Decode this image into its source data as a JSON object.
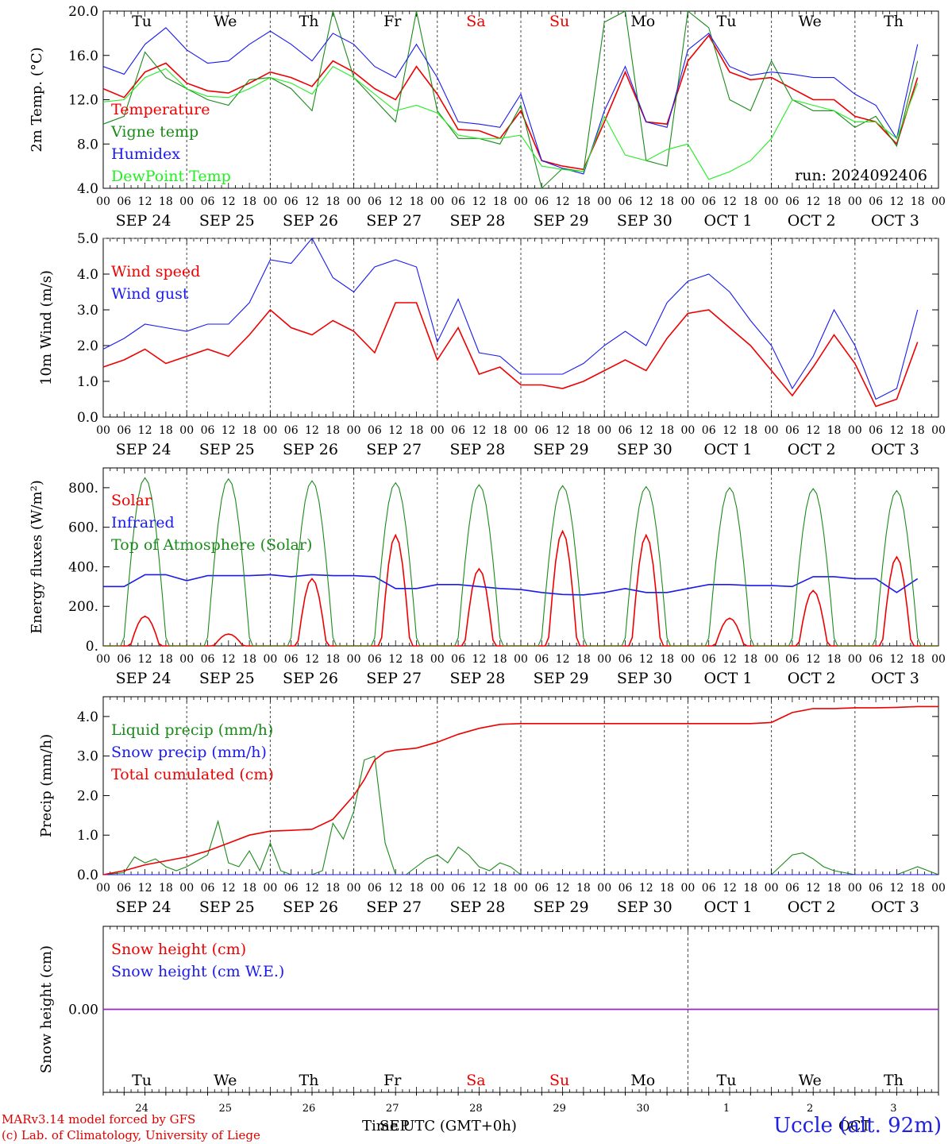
{
  "run_label": "run: 2024092406",
  "footer": {
    "model": "MARv3.14 model forced by GFS",
    "lab": "(c) Lab. of Climatology, University of Liege",
    "xlabel": "Time UTC (GMT+0h)",
    "station": "Uccle (alt. 92m)",
    "month_a": "SEP",
    "month_b": "OCT"
  },
  "colors": {
    "red": "#ee0000",
    "green": "#1a8a1a",
    "blue": "#1a1aee",
    "lightgreen": "#22ee22",
    "purple": "#8a2be2"
  },
  "weekdays": [
    "Tu",
    "We",
    "Th",
    "Fr",
    "Sa",
    "Su",
    "Mo",
    "Tu",
    "We",
    "Th"
  ],
  "weekday_colors": [
    "#000",
    "#000",
    "#000",
    "#000",
    "#ee0000",
    "#ee0000",
    "#000",
    "#000",
    "#000",
    "#000"
  ],
  "day_labels": [
    "SEP 24",
    "SEP 25",
    "SEP 26",
    "SEP 27",
    "SEP 28",
    "SEP 29",
    "SEP 30",
    "OCT 1",
    "OCT 2",
    "OCT 3"
  ],
  "day_numbers": [
    "24",
    "25",
    "26",
    "27",
    "28",
    "29",
    "30",
    "1",
    "2",
    "3"
  ],
  "hour_labels": [
    "00",
    "06",
    "12",
    "18"
  ],
  "chart_data": [
    {
      "type": "line",
      "id": "temp",
      "ylabel": "2m Temp. (°C)",
      "ylim": [
        4.0,
        20.0
      ],
      "yticks": [
        "4.0",
        "8.0",
        "12.0",
        "16.0",
        "20.0"
      ],
      "x_unit": "hours since SEP 24 00 UTC",
      "series": [
        {
          "name": "Temperature",
          "color": "red",
          "x": [
            0,
            6,
            12,
            18,
            24,
            30,
            36,
            42,
            48,
            54,
            60,
            66,
            72,
            78,
            84,
            90,
            96,
            102,
            108,
            114,
            120,
            126,
            132,
            138,
            144,
            150,
            156,
            162,
            168,
            174,
            180,
            186,
            192,
            198,
            204,
            210,
            216,
            222,
            228,
            234
          ],
          "y": [
            13.0,
            12.2,
            14.5,
            15.3,
            13.5,
            12.8,
            12.6,
            13.5,
            14.5,
            14.0,
            13.2,
            15.5,
            14.5,
            13.0,
            12.0,
            15.0,
            12.5,
            9.3,
            9.2,
            8.5,
            11.0,
            6.5,
            6.0,
            5.7,
            10.0,
            14.5,
            10.0,
            9.8,
            15.5,
            17.8,
            14.5,
            13.8,
            14.0,
            13.0,
            12.0,
            12.0,
            10.5,
            10.0,
            8.0,
            14.0
          ]
        },
        {
          "name": "Vigne temp",
          "color": "green",
          "x": [
            0,
            6,
            12,
            18,
            24,
            30,
            36,
            42,
            48,
            54,
            60,
            66,
            72,
            78,
            84,
            90,
            96,
            102,
            108,
            114,
            120,
            126,
            132,
            138,
            144,
            150,
            156,
            162,
            168,
            174,
            180,
            186,
            192,
            198,
            204,
            210,
            216,
            222,
            228,
            234
          ],
          "y": [
            9.8,
            10.5,
            16.3,
            14.0,
            13.0,
            12.0,
            11.5,
            13.8,
            14.0,
            13.0,
            11.0,
            20.0,
            14.0,
            12.0,
            10.0,
            20.0,
            11.0,
            8.5,
            8.5,
            8.0,
            11.5,
            4.0,
            5.8,
            5.5,
            19.0,
            20.0,
            6.5,
            6.0,
            20.0,
            18.5,
            12.0,
            11.0,
            15.5,
            12.0,
            11.0,
            11.0,
            9.5,
            10.5,
            7.8,
            15.5
          ]
        },
        {
          "name": "Humidex",
          "color": "blue",
          "x": [
            0,
            6,
            12,
            18,
            24,
            30,
            36,
            42,
            48,
            54,
            60,
            66,
            72,
            78,
            84,
            90,
            96,
            102,
            108,
            114,
            120,
            126,
            132,
            138,
            144,
            150,
            156,
            162,
            168,
            174,
            180,
            186,
            192,
            198,
            204,
            210,
            216,
            222,
            228,
            234
          ],
          "y": [
            15.0,
            14.3,
            17.0,
            18.5,
            16.5,
            15.3,
            15.5,
            17.0,
            18.2,
            17.0,
            15.5,
            18.0,
            17.0,
            15.0,
            14.0,
            17.0,
            14.0,
            10.0,
            9.8,
            9.5,
            12.5,
            6.5,
            5.8,
            5.3,
            11.0,
            15.0,
            10.0,
            9.5,
            16.5,
            18.0,
            15.0,
            14.2,
            14.5,
            14.3,
            14.0,
            14.0,
            12.5,
            11.5,
            8.5,
            17.0
          ]
        },
        {
          "name": "DewPoint Temp",
          "color": "lightgreen",
          "x": [
            0,
            6,
            12,
            18,
            24,
            30,
            36,
            42,
            48,
            54,
            60,
            66,
            72,
            78,
            84,
            90,
            96,
            102,
            108,
            114,
            120,
            126,
            132,
            138,
            144,
            150,
            156,
            162,
            168,
            174,
            180,
            186,
            192,
            198,
            204,
            210,
            216,
            222,
            228,
            234
          ],
          "y": [
            11.8,
            12.0,
            14.0,
            14.8,
            13.0,
            12.3,
            12.2,
            13.0,
            14.0,
            13.5,
            12.5,
            15.0,
            14.0,
            12.5,
            11.0,
            11.5,
            10.8,
            8.8,
            8.5,
            8.5,
            8.8,
            6.0,
            5.7,
            5.5,
            10.5,
            7.0,
            6.5,
            7.5,
            8.0,
            4.8,
            5.5,
            6.5,
            8.5,
            12.0,
            11.5,
            11.0,
            10.0,
            10.0,
            8.5,
            13.5
          ]
        }
      ]
    },
    {
      "type": "line",
      "id": "wind",
      "ylabel": "10m Wind (m/s)",
      "ylim": [
        0.0,
        5.0
      ],
      "yticks": [
        "0.0",
        "1.0",
        "2.0",
        "3.0",
        "4.0",
        "5.0"
      ],
      "x_unit": "hours since SEP 24 00 UTC",
      "series": [
        {
          "name": "Wind speed",
          "color": "red",
          "x": [
            0,
            6,
            12,
            18,
            24,
            30,
            36,
            42,
            48,
            54,
            60,
            66,
            72,
            78,
            84,
            90,
            96,
            102,
            108,
            114,
            120,
            126,
            132,
            138,
            144,
            150,
            156,
            162,
            168,
            174,
            180,
            186,
            192,
            198,
            204,
            210,
            216,
            222,
            228,
            234
          ],
          "y": [
            1.4,
            1.6,
            1.9,
            1.5,
            1.7,
            1.9,
            1.7,
            2.3,
            3.0,
            2.5,
            2.3,
            2.7,
            2.4,
            1.8,
            3.2,
            3.2,
            1.6,
            2.5,
            1.2,
            1.4,
            0.9,
            0.9,
            0.8,
            1.0,
            1.3,
            1.6,
            1.3,
            2.2,
            2.9,
            3.0,
            2.5,
            2.0,
            1.3,
            0.6,
            1.4,
            2.3,
            1.5,
            0.3,
            0.5,
            2.1
          ]
        },
        {
          "name": "Wind gust",
          "color": "blue",
          "x": [
            0,
            6,
            12,
            18,
            24,
            30,
            36,
            42,
            48,
            54,
            60,
            66,
            72,
            78,
            84,
            90,
            96,
            102,
            108,
            114,
            120,
            126,
            132,
            138,
            144,
            150,
            156,
            162,
            168,
            174,
            180,
            186,
            192,
            198,
            204,
            210,
            216,
            222,
            228,
            234
          ],
          "y": [
            1.9,
            2.2,
            2.6,
            2.5,
            2.4,
            2.6,
            2.6,
            3.2,
            4.4,
            4.3,
            5.0,
            3.9,
            3.5,
            4.2,
            4.4,
            4.2,
            2.1,
            3.3,
            1.8,
            1.7,
            1.2,
            1.2,
            1.2,
            1.5,
            2.0,
            2.4,
            2.0,
            3.2,
            3.8,
            4.0,
            3.5,
            2.7,
            2.0,
            0.8,
            1.7,
            3.0,
            2.0,
            0.5,
            0.8,
            3.0
          ]
        }
      ]
    },
    {
      "type": "line",
      "id": "energy",
      "ylabel": "Energy fluxes (W/m²)",
      "ylim": [
        0,
        900
      ],
      "yticks": [
        "0.",
        "200.",
        "400.",
        "600.",
        "800."
      ],
      "x_unit": "hours since SEP 24 00 UTC",
      "series": [
        {
          "name": "Solar",
          "color": "red",
          "diurnal_peaks": [
            150,
            60,
            340,
            560,
            390,
            580,
            560,
            140,
            280,
            450
          ]
        },
        {
          "name": "Infrared",
          "color": "blue",
          "x": [
            0,
            6,
            12,
            18,
            24,
            30,
            36,
            42,
            48,
            54,
            60,
            66,
            72,
            78,
            84,
            90,
            96,
            102,
            108,
            114,
            120,
            126,
            132,
            138,
            144,
            150,
            156,
            162,
            168,
            174,
            180,
            186,
            192,
            198,
            204,
            210,
            216,
            222,
            228,
            234
          ],
          "y": [
            300,
            300,
            360,
            360,
            330,
            355,
            355,
            355,
            360,
            350,
            360,
            355,
            355,
            350,
            290,
            290,
            310,
            310,
            300,
            290,
            285,
            270,
            260,
            258,
            270,
            290,
            270,
            270,
            290,
            310,
            310,
            305,
            305,
            300,
            350,
            350,
            340,
            340,
            270,
            340
          ]
        },
        {
          "name": "Top of Atmosphere (Solar)",
          "color": "green",
          "diurnal_peaks": [
            850,
            845,
            835,
            825,
            815,
            810,
            805,
            800,
            795,
            785
          ]
        }
      ]
    },
    {
      "type": "line",
      "id": "precip",
      "ylabel": "Precip (mm/h)",
      "ylim": [
        0.0,
        4.5
      ],
      "yticks": [
        "0.0",
        "1.0",
        "2.0",
        "3.0",
        "4.0"
      ],
      "x_unit": "hours since SEP 24 00 UTC",
      "series": [
        {
          "name": "Liquid precip (mm/h)",
          "color": "green",
          "x": [
            0,
            6,
            9,
            12,
            15,
            18,
            21,
            24,
            30,
            33,
            36,
            39,
            42,
            45,
            48,
            51,
            54,
            57,
            60,
            63,
            66,
            69,
            72,
            75,
            78,
            81,
            84,
            87,
            90,
            93,
            96,
            99,
            102,
            105,
            108,
            111,
            114,
            117,
            120,
            126,
            132,
            180,
            192,
            198,
            201,
            204,
            207,
            210,
            213,
            216,
            228,
            234,
            240
          ],
          "y": [
            0,
            0.05,
            0.45,
            0.3,
            0.4,
            0.2,
            0.1,
            0.2,
            0.5,
            1.35,
            0.3,
            0.2,
            0.6,
            0.1,
            0.8,
            0.1,
            0,
            0,
            0,
            0.1,
            1.3,
            0.9,
            1.6,
            2.9,
            3.0,
            0.8,
            0,
            0,
            0.2,
            0.4,
            0.5,
            0.3,
            0.7,
            0.5,
            0.2,
            0.1,
            0.3,
            0.2,
            0,
            0,
            0,
            0,
            0,
            0.5,
            0.55,
            0.4,
            0.2,
            0.1,
            0.05,
            0,
            0,
            0.2,
            0
          ]
        },
        {
          "name": "Snow precip (mm/h)",
          "color": "blue",
          "x": [
            0,
            240
          ],
          "y": [
            0,
            0
          ]
        },
        {
          "name": "Total cumulated (cm)",
          "color": "red",
          "x": [
            0,
            6,
            12,
            18,
            24,
            30,
            36,
            42,
            48,
            54,
            60,
            66,
            72,
            75,
            78,
            81,
            84,
            90,
            96,
            102,
            108,
            114,
            120,
            126,
            132,
            186,
            192,
            198,
            204,
            210,
            216,
            222,
            228,
            234,
            240
          ],
          "y": [
            0,
            0.1,
            0.25,
            0.35,
            0.45,
            0.6,
            0.8,
            1.0,
            1.1,
            1.12,
            1.15,
            1.4,
            2.0,
            2.4,
            2.9,
            3.1,
            3.15,
            3.2,
            3.35,
            3.55,
            3.7,
            3.8,
            3.82,
            3.82,
            3.82,
            3.82,
            3.85,
            4.1,
            4.2,
            4.2,
            4.22,
            4.22,
            4.23,
            4.25,
            4.25
          ]
        }
      ]
    },
    {
      "type": "line",
      "id": "snow",
      "ylabel": "Snow height (cm)",
      "ylim": [
        -1.0,
        1.0
      ],
      "yticks": [
        "0.00"
      ],
      "x_unit": "hours since SEP 24 00 UTC",
      "series": [
        {
          "name": "Snow height (cm)",
          "color": "red",
          "x": [
            0,
            240
          ],
          "y": [
            0,
            0
          ]
        },
        {
          "name": "Snow height (cm W.E.)",
          "color": "blue",
          "x": [
            0,
            240
          ],
          "y": [
            0,
            0
          ]
        }
      ]
    }
  ]
}
